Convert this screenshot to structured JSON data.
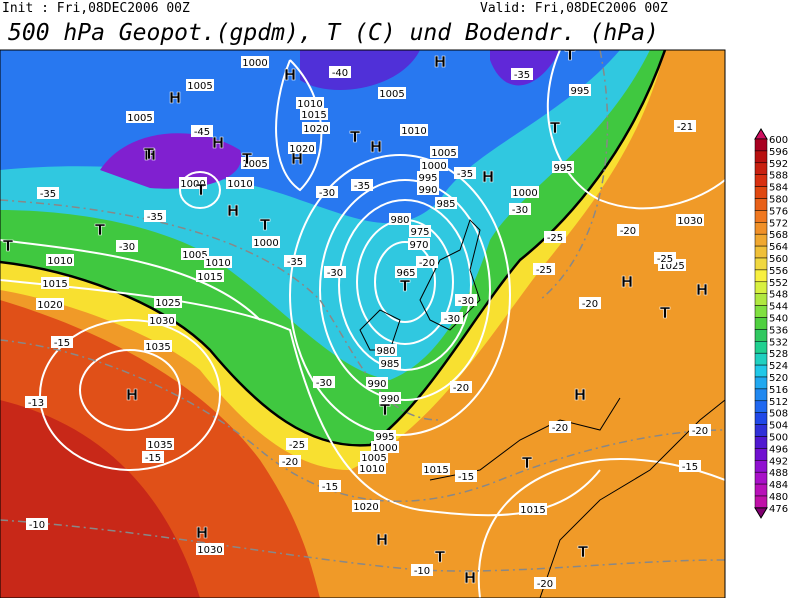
{
  "header": {
    "init": "Init : Fri,08DEC2006 00Z",
    "valid": "Valid: Fri,08DEC2006 00Z",
    "title": "500 hPa Geopot.(gpdm), T (C) und Bodendr. (hPa)"
  },
  "colorbar": {
    "labels": [
      600,
      596,
      592,
      588,
      584,
      580,
      576,
      572,
      568,
      564,
      560,
      556,
      552,
      548,
      544,
      540,
      536,
      532,
      528,
      524,
      520,
      516,
      512,
      508,
      504,
      500,
      496,
      492,
      488,
      484,
      480,
      476
    ],
    "colors": [
      "#a80020",
      "#b81010",
      "#c82010",
      "#d83010",
      "#e04810",
      "#e86018",
      "#f07820",
      "#f09028",
      "#f0a830",
      "#f0c038",
      "#f0d840",
      "#f8f040",
      "#d8f040",
      "#b0e840",
      "#80e040",
      "#50d040",
      "#30c860",
      "#20d090",
      "#20d0c0",
      "#20c8e8",
      "#20a8f0",
      "#2088f0",
      "#2068f0",
      "#2048e8",
      "#3030d8",
      "#5018d0",
      "#7010d0",
      "#9010d0",
      "#a810c8",
      "#b810b8",
      "#c010a8"
    ],
    "top_color": "#d01060",
    "bottom_color": "#800070"
  },
  "pressure_labels": [
    "1000",
    "1005",
    "1005",
    "1010",
    "1015",
    "1020",
    "1020",
    "1005",
    "1010",
    "1005",
    "1000",
    "995",
    "990",
    "985",
    "980",
    "975",
    "970",
    "965",
    "980",
    "985",
    "990",
    "990",
    "995",
    "1000",
    "1005",
    "1010",
    "1015",
    "1020",
    "1015",
    "995",
    "995",
    "1000",
    "1005",
    "1010",
    "1000",
    "1000",
    "1005",
    "1010",
    "1015",
    "1010",
    "1015",
    "1020",
    "1025",
    "1030",
    "1035",
    "1035",
    "1030",
    "1030",
    "1025"
  ],
  "temperature_labels": [
    "-40",
    "-35",
    "-45",
    "-35",
    "-30",
    "-35",
    "-35",
    "-35",
    "-30",
    "-25",
    "-30",
    "-35",
    "-30",
    "-20",
    "-30",
    "-30",
    "-30",
    "-20",
    "-25",
    "-20",
    "-20",
    "-25",
    "-21",
    "-15",
    "-13",
    "-15",
    "-25",
    "-20",
    "-15",
    "-15",
    "-10",
    "-10",
    "-20",
    "-20",
    "-20",
    "-15"
  ],
  "high_markers": [
    "H",
    "H",
    "H",
    "H",
    "H",
    "H",
    "H",
    "H",
    "H",
    "H",
    "H",
    "H",
    "H",
    "H",
    "H",
    "H"
  ],
  "low_markers": [
    "T",
    "T",
    "T",
    "T",
    "T",
    "T",
    "T",
    "T",
    "T",
    "T",
    "T",
    "T",
    "T",
    "T",
    "T"
  ]
}
